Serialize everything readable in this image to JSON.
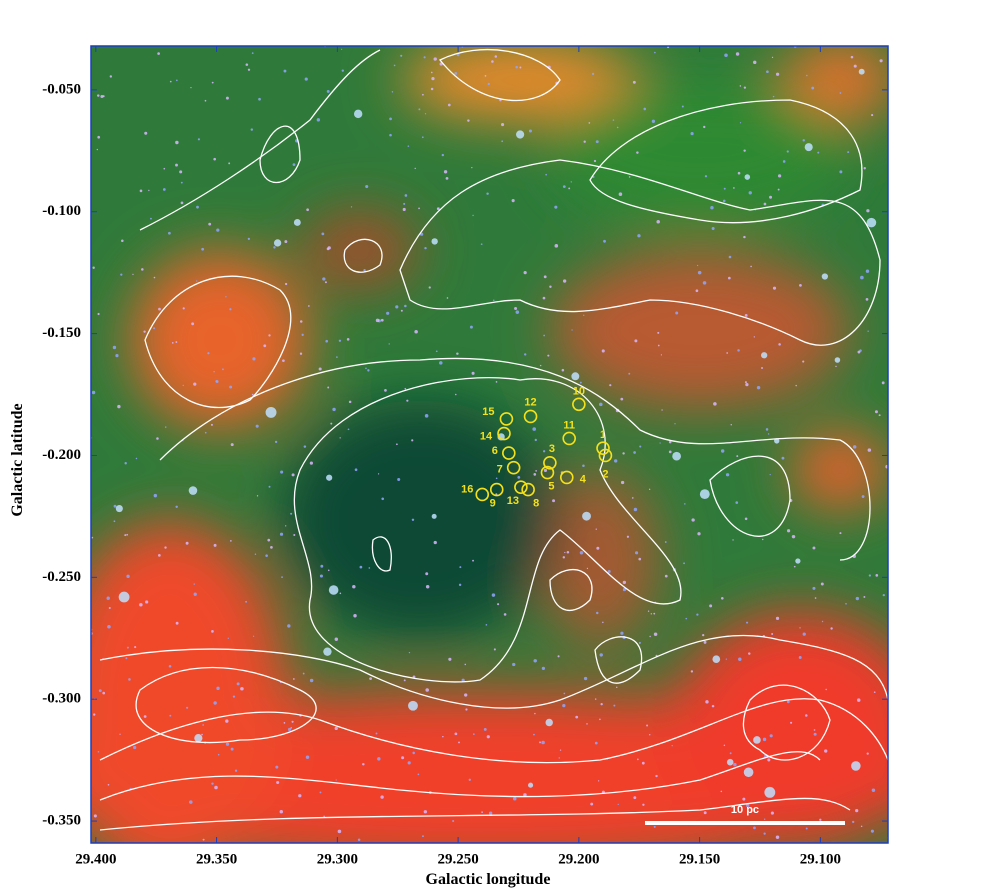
{
  "chart_data": {
    "type": "scatter",
    "x_label": "Galactic longitude",
    "y_label": "Galactic latitude",
    "xlim": [
      29.402,
      29.072
    ],
    "ylim": [
      -0.359,
      -0.032
    ],
    "xticks": [
      {
        "value": 29.4,
        "label": "29.400"
      },
      {
        "value": 29.35,
        "label": "29.350"
      },
      {
        "value": 29.3,
        "label": "29.300"
      },
      {
        "value": 29.25,
        "label": "29.250"
      },
      {
        "value": 29.2,
        "label": "29.200"
      },
      {
        "value": 29.15,
        "label": "29.150"
      },
      {
        "value": 29.1,
        "label": "29.100"
      }
    ],
    "yticks": [
      {
        "value": -0.05,
        "label": "-0.050"
      },
      {
        "value": -0.1,
        "label": "-0.100"
      },
      {
        "value": -0.15,
        "label": "-0.150"
      },
      {
        "value": -0.2,
        "label": "-0.200"
      },
      {
        "value": -0.25,
        "label": "-0.250"
      },
      {
        "value": -0.3,
        "label": "-0.300"
      },
      {
        "value": -0.35,
        "label": "-0.350"
      }
    ],
    "color": "#f5e11a",
    "labels": [
      "1",
      "2",
      "3",
      "4",
      "5",
      "6",
      "7",
      "8",
      "9",
      "10",
      "11",
      "12",
      "13",
      "14",
      "15",
      "16"
    ],
    "x": [
      29.19,
      29.189,
      29.212,
      29.205,
      29.213,
      29.229,
      29.227,
      29.221,
      29.234,
      29.2,
      29.204,
      29.22,
      29.224,
      29.231,
      29.23,
      29.24
    ],
    "y": [
      -0.197,
      -0.2,
      -0.203,
      -0.209,
      -0.207,
      -0.199,
      -0.205,
      -0.214,
      -0.214,
      -0.179,
      -0.193,
      -0.184,
      -0.213,
      -0.191,
      -0.185,
      -0.216
    ],
    "annotation": "10 pc"
  }
}
